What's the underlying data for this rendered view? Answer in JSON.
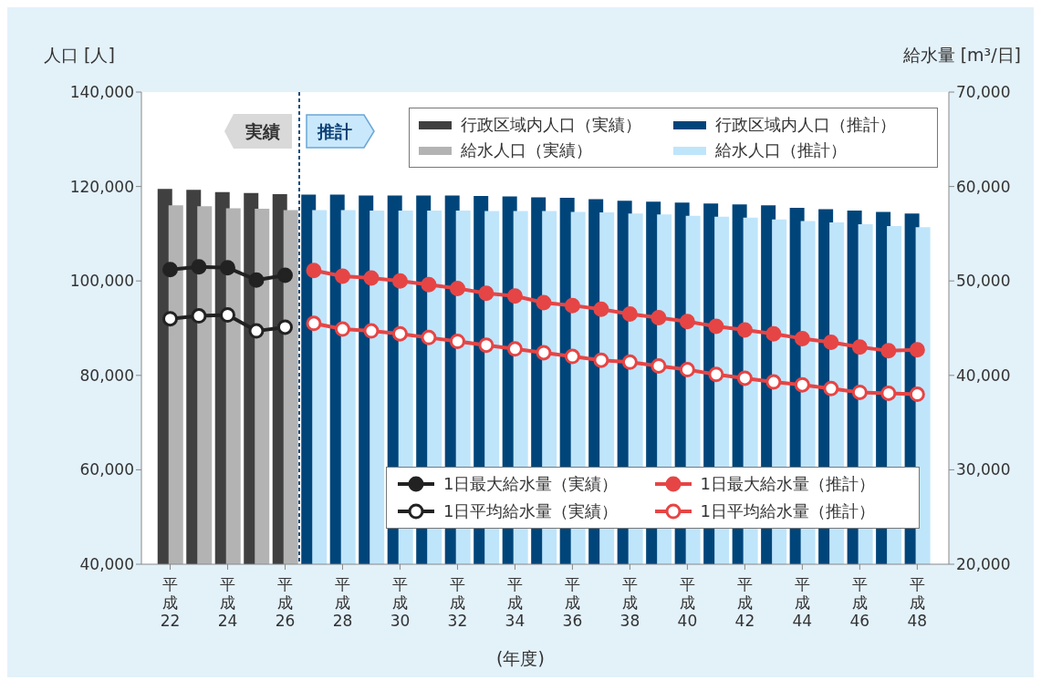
{
  "chart_data": {
    "type": "bar",
    "ylabel": "人口 [人]",
    "y2label": "給水量 [m³/日]",
    "xlabel": "(年度)",
    "categories": [
      "平成22",
      null,
      "平成24",
      null,
      "平成26",
      null,
      "平成28",
      null,
      "平成30",
      null,
      "平成32",
      null,
      "平成34",
      null,
      "平成36",
      null,
      "平成38",
      null,
      "平成40",
      null,
      "平成42",
      null,
      "平成44",
      null,
      "平成46",
      null,
      "平成48"
    ],
    "ylim": [
      40000,
      140000
    ],
    "yticks": [
      {
        "value": 40000,
        "label": "40,000"
      },
      {
        "value": 60000,
        "label": "60,000"
      },
      {
        "value": 80000,
        "label": "80,000"
      },
      {
        "value": 100000,
        "label": "100,000"
      },
      {
        "value": 120000,
        "label": "120,000"
      },
      {
        "value": 140000,
        "label": "140,000"
      }
    ],
    "y2lim": [
      20000,
      70000
    ],
    "y2ticks": [
      {
        "value": 20000,
        "label": "20,000"
      },
      {
        "value": 30000,
        "label": "30,000"
      },
      {
        "value": 40000,
        "label": "40,000"
      },
      {
        "value": 50000,
        "label": "50,000"
      },
      {
        "value": 60000,
        "label": "60,000"
      },
      {
        "value": 70000,
        "label": "70,000"
      }
    ],
    "series": [
      {
        "name": "行政区域内人口（実績）",
        "color": "#404040",
        "values": [
          119500,
          119300,
          118800,
          118600,
          118400,
          null,
          null,
          null,
          null,
          null,
          null,
          null,
          null,
          null,
          null,
          null,
          null,
          null,
          null,
          null,
          null,
          null,
          null,
          null,
          null,
          null,
          null
        ]
      },
      {
        "name": "給水人口（実績）",
        "color": "#b3b3b3",
        "values": [
          116000,
          115800,
          115400,
          115300,
          115000,
          null,
          null,
          null,
          null,
          null,
          null,
          null,
          null,
          null,
          null,
          null,
          null,
          null,
          null,
          null,
          null,
          null,
          null,
          null,
          null,
          null,
          null
        ]
      },
      {
        "name": "行政区域内人口（推計）",
        "color": "#00457a",
        "values": [
          null,
          null,
          null,
          null,
          null,
          118300,
          118300,
          118100,
          118100,
          118100,
          118100,
          118000,
          117900,
          117700,
          117600,
          117300,
          117000,
          116800,
          116600,
          116400,
          116200,
          116000,
          115500,
          115200,
          114900,
          114600,
          114300
        ]
      },
      {
        "name": "給水人口（推計）",
        "color": "#bfe5fb",
        "values": [
          null,
          null,
          null,
          null,
          null,
          115000,
          115000,
          114900,
          114900,
          114900,
          114900,
          114800,
          114800,
          114800,
          114600,
          114500,
          114300,
          114100,
          113800,
          113600,
          113400,
          113000,
          112700,
          112400,
          112000,
          111600,
          111400
        ]
      },
      {
        "name": "1日最大給水量（実績）",
        "type": "line",
        "axis": "y2",
        "color": "#222222",
        "values": [
          51200,
          51500,
          51400,
          50100,
          50600,
          null,
          null,
          null,
          null,
          null,
          null,
          null,
          null,
          null,
          null,
          null,
          null,
          null,
          null,
          null,
          null,
          null,
          null,
          null,
          null,
          null,
          null
        ]
      },
      {
        "name": "1日平均給水量（実績）",
        "type": "line",
        "axis": "y2",
        "color": "#222222",
        "values": [
          46000,
          46300,
          46400,
          44700,
          45100,
          null,
          null,
          null,
          null,
          null,
          null,
          null,
          null,
          null,
          null,
          null,
          null,
          null,
          null,
          null,
          null,
          null,
          null,
          null,
          null,
          null,
          null
        ]
      },
      {
        "name": "1日最大給水量（推計）",
        "type": "line",
        "axis": "y2",
        "color": "#e64545",
        "values": [
          null,
          null,
          null,
          null,
          null,
          51100,
          50500,
          50300,
          50000,
          49600,
          49200,
          48700,
          48400,
          47700,
          47400,
          47000,
          46500,
          46100,
          45700,
          45200,
          44800,
          44400,
          43900,
          43500,
          43000,
          42600,
          42700
        ]
      },
      {
        "name": "1日平均給水量（推計）",
        "type": "line",
        "axis": "y2",
        "color": "#e64545",
        "values": [
          null,
          null,
          null,
          null,
          null,
          45500,
          44900,
          44700,
          44400,
          44000,
          43600,
          43200,
          42800,
          42400,
          42000,
          41600,
          41400,
          41000,
          40600,
          40100,
          39700,
          39300,
          39000,
          38600,
          38200,
          38100,
          38000
        ]
      }
    ],
    "marker": "circle",
    "line_style": "solid",
    "ref_lines": [
      {
        "axis": "x",
        "value": "平成26",
        "color": "#1f4e79",
        "line_style": "dashed"
      }
    ],
    "annotations": [
      "実績",
      "推計"
    ],
    "legend": "top right"
  }
}
